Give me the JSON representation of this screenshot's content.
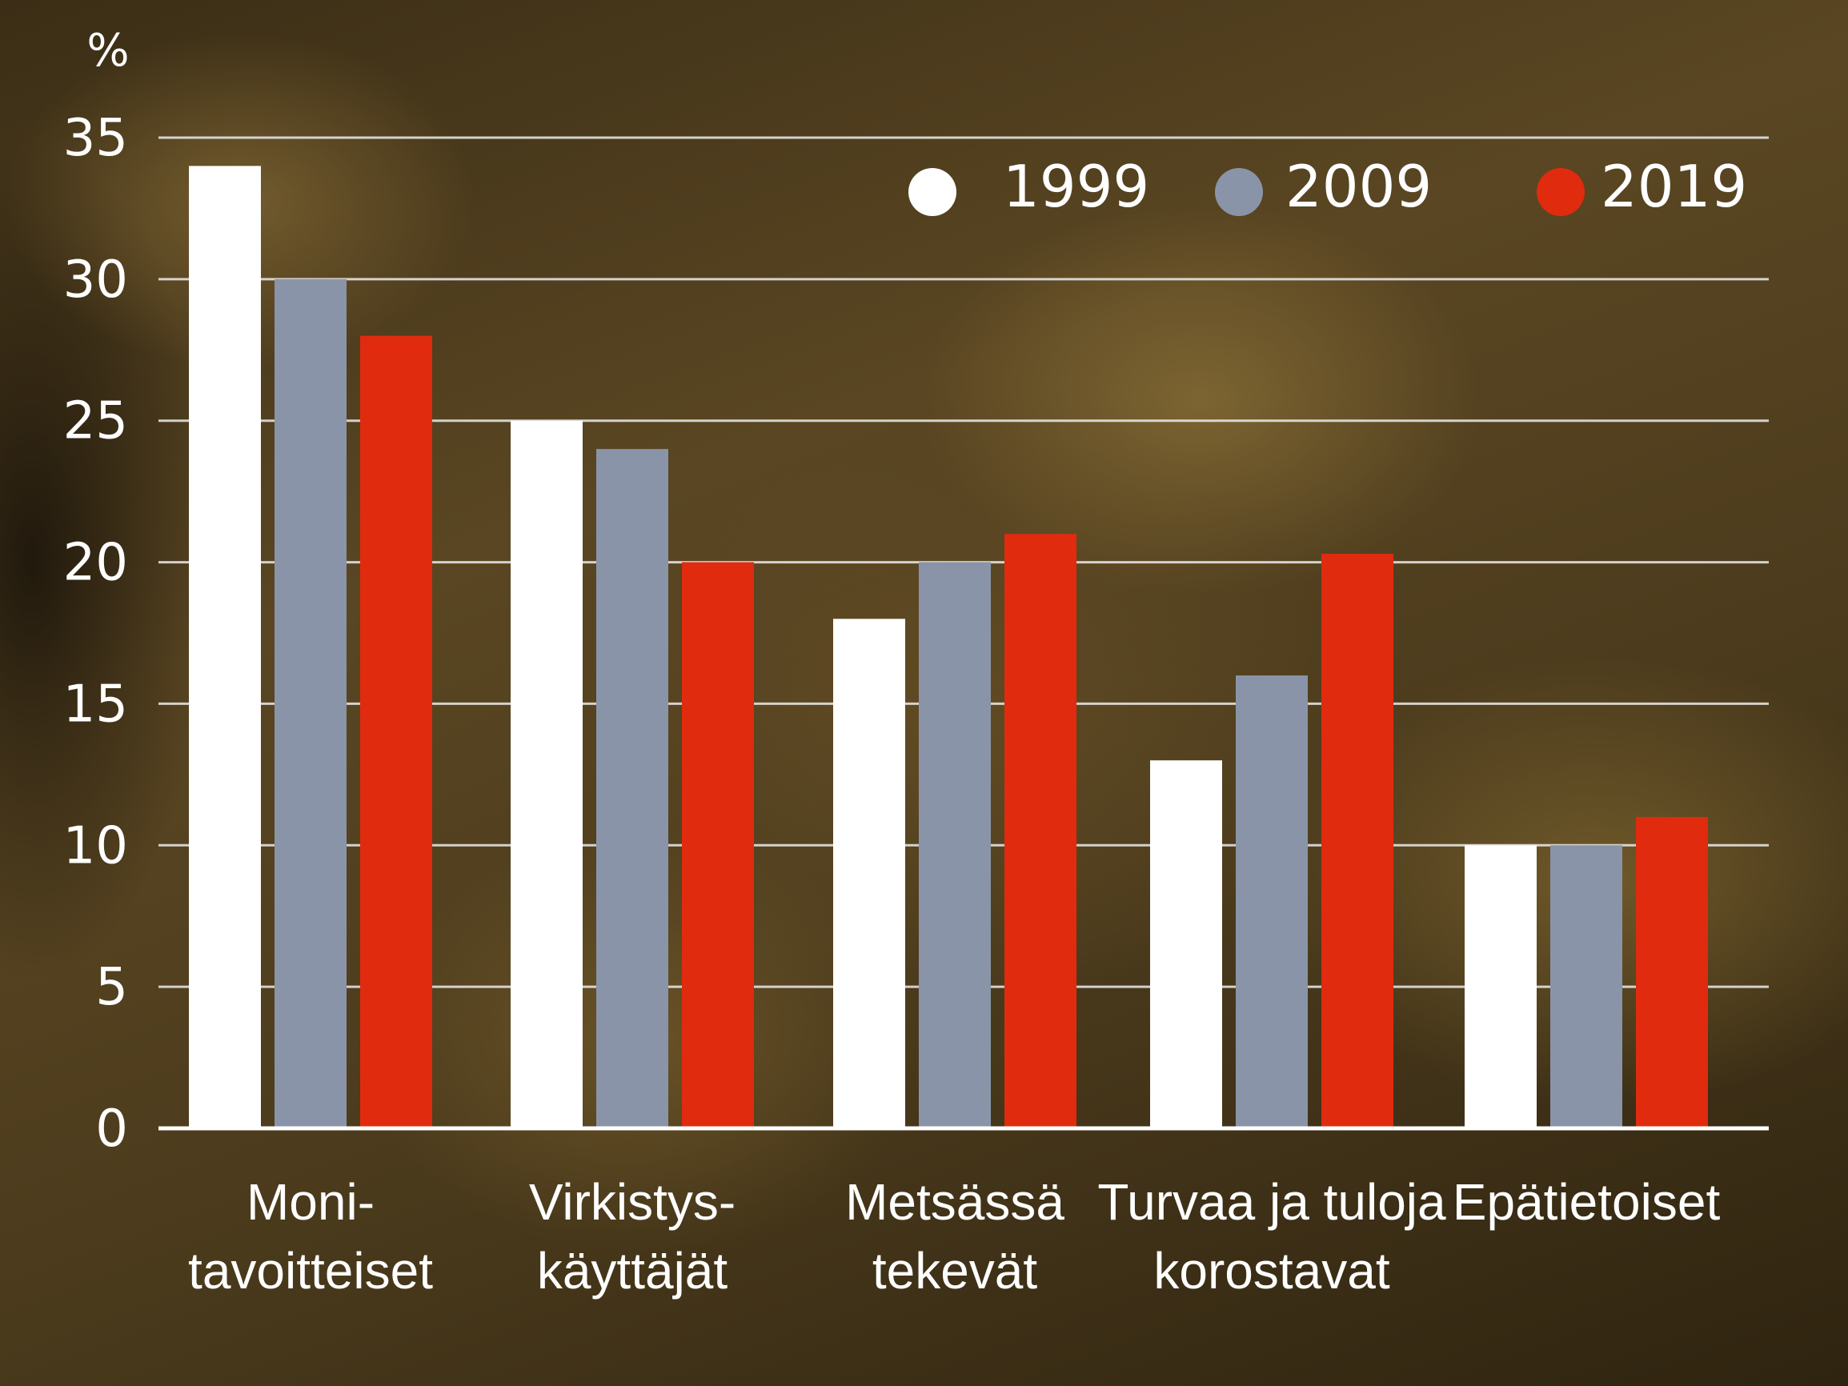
{
  "colors": {
    "s1999": "#ffffff",
    "s2009": "#8a94a8",
    "s2019": "#e02b0e",
    "text": "#ffffff"
  },
  "chart_data": {
    "type": "bar",
    "ylabel": "%",
    "ylim": [
      0,
      35
    ],
    "yticks": [
      "35",
      "30",
      "25",
      "20",
      "15",
      "10",
      "5",
      "0"
    ],
    "grid": true,
    "legend_position": "top-right",
    "categories": [
      [
        "Moni-",
        "tavoitteiset"
      ],
      [
        "Virkistys-",
        "käyttäjät"
      ],
      [
        "Metsässä",
        "tekevät"
      ],
      [
        "Turvaa ja tuloja",
        "korostavat"
      ],
      [
        "Epätietoiset"
      ]
    ],
    "series": [
      {
        "name": "1999",
        "color": "#ffffff",
        "values": [
          34,
          25,
          18,
          13,
          10
        ]
      },
      {
        "name": "2009",
        "color": "#8a94a8",
        "values": [
          30,
          24,
          20,
          16,
          10
        ]
      },
      {
        "name": "2019",
        "color": "#e02b0e",
        "values": [
          28,
          20,
          21,
          20.3,
          11
        ]
      }
    ]
  }
}
